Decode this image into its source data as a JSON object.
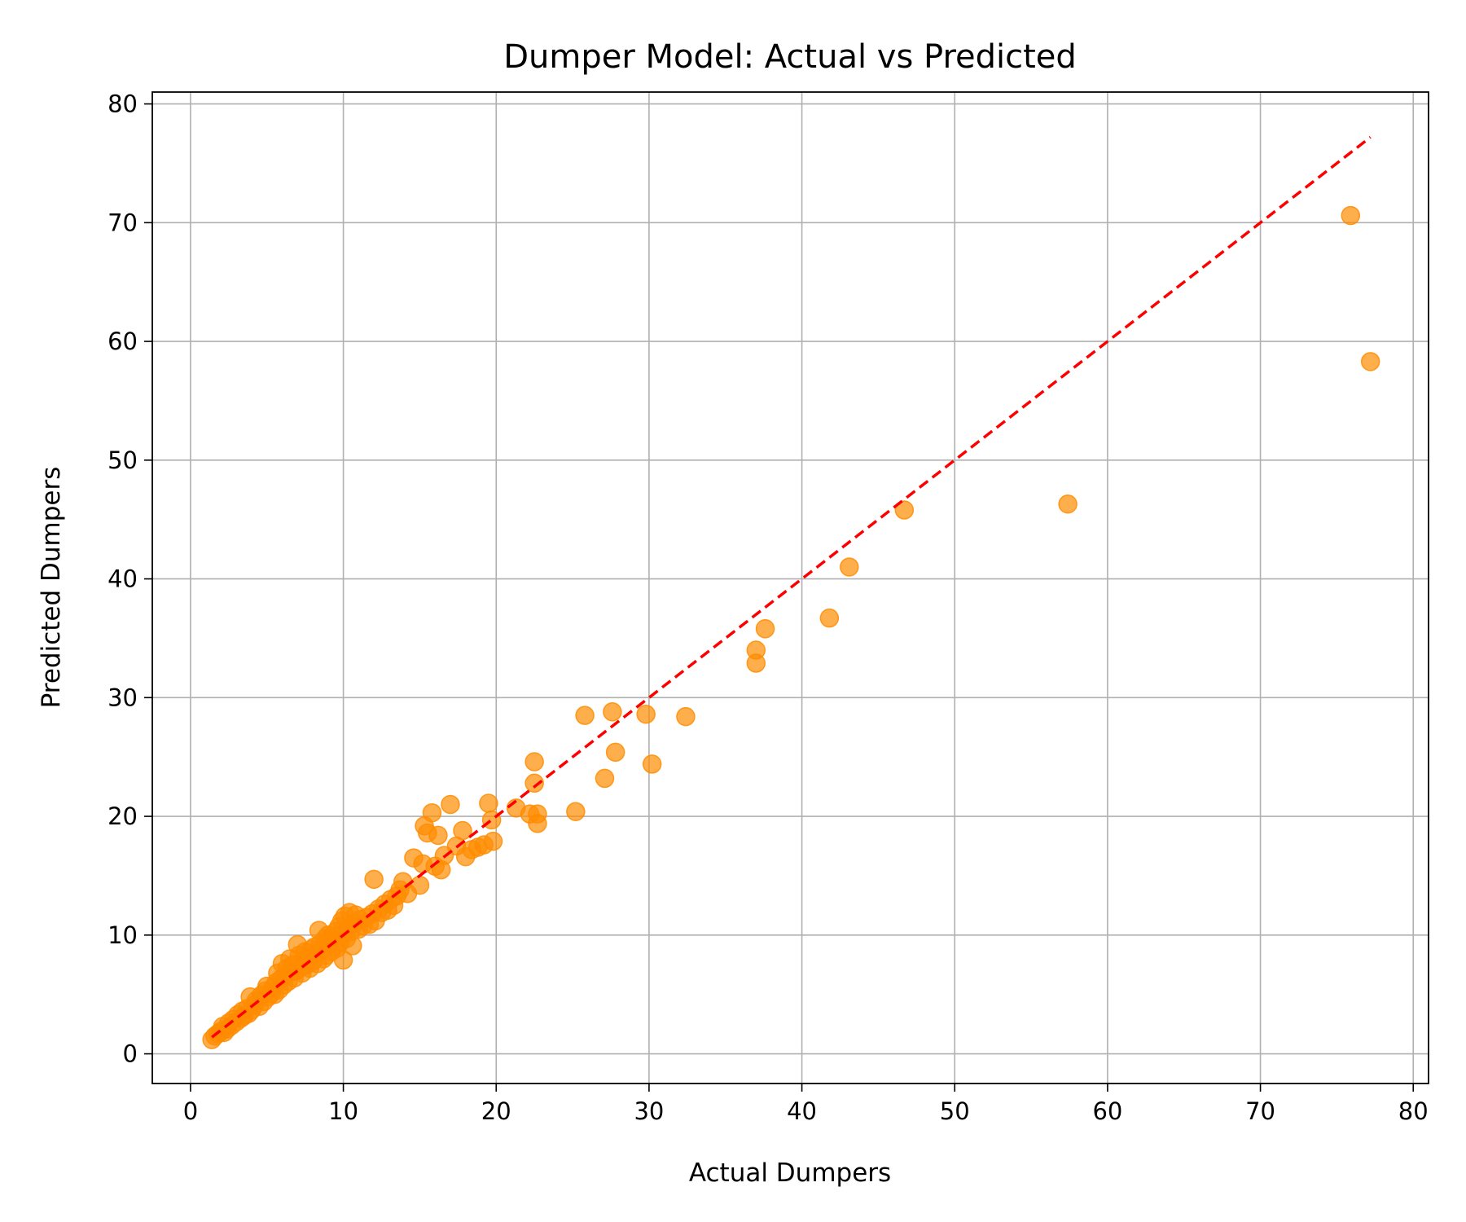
{
  "chart_data": {
    "type": "scatter",
    "title": "Dumper Model: Actual vs Predicted",
    "xlabel": "Actual Dumpers",
    "ylabel": "Predicted Dumpers",
    "xlim": [
      -2.5,
      81
    ],
    "ylim": [
      -2.5,
      81
    ],
    "xticks": [
      0,
      10,
      20,
      30,
      40,
      50,
      60,
      70,
      80
    ],
    "yticks": [
      0,
      10,
      20,
      30,
      40,
      50,
      60,
      70,
      80
    ],
    "grid": true,
    "legend": "none",
    "point_color": "#ff8c00",
    "point_opacity": 0.7,
    "reference_line": {
      "style": "dashed",
      "color": "#ff0000",
      "from": [
        1.4,
        1.4
      ],
      "to": [
        77.2,
        77.2
      ]
    },
    "points": [
      [
        1.4,
        1.2
      ],
      [
        1.6,
        1.5
      ],
      [
        1.8,
        1.7
      ],
      [
        2.0,
        1.9
      ],
      [
        2.1,
        2.3
      ],
      [
        2.2,
        1.8
      ],
      [
        2.4,
        2.1
      ],
      [
        2.5,
        2.6
      ],
      [
        2.7,
        2.4
      ],
      [
        2.8,
        2.9
      ],
      [
        3.0,
        2.7
      ],
      [
        3.1,
        3.3
      ],
      [
        3.3,
        3.0
      ],
      [
        3.4,
        3.6
      ],
      [
        3.5,
        3.2
      ],
      [
        3.7,
        3.8
      ],
      [
        3.8,
        3.4
      ],
      [
        3.9,
        4.8
      ],
      [
        4.0,
        3.7
      ],
      [
        4.2,
        4.1
      ],
      [
        4.3,
        4.5
      ],
      [
        4.5,
        4.0
      ],
      [
        4.6,
        4.9
      ],
      [
        4.8,
        4.4
      ],
      [
        4.9,
        5.3
      ],
      [
        5.0,
        5.7
      ],
      [
        5.1,
        4.8
      ],
      [
        5.3,
        5.1
      ],
      [
        5.4,
        5.6
      ],
      [
        5.5,
        5.0
      ],
      [
        5.6,
        6.0
      ],
      [
        5.7,
        6.8
      ],
      [
        5.8,
        5.4
      ],
      [
        5.9,
        6.3
      ],
      [
        6.0,
        7.6
      ],
      [
        6.1,
        5.8
      ],
      [
        6.2,
        6.6
      ],
      [
        6.3,
        7.2
      ],
      [
        6.4,
        6.1
      ],
      [
        6.5,
        8.0
      ],
      [
        6.6,
        6.9
      ],
      [
        6.7,
        7.5
      ],
      [
        6.8,
        6.4
      ],
      [
        6.9,
        7.0
      ],
      [
        7.0,
        9.2
      ],
      [
        7.1,
        8.3
      ],
      [
        7.2,
        7.3
      ],
      [
        7.3,
        6.8
      ],
      [
        7.4,
        7.9
      ],
      [
        7.5,
        8.6
      ],
      [
        7.6,
        7.5
      ],
      [
        7.7,
        8.1
      ],
      [
        7.8,
        7.2
      ],
      [
        7.9,
        8.8
      ],
      [
        8.0,
        7.8
      ],
      [
        8.1,
        9.0
      ],
      [
        8.2,
        8.4
      ],
      [
        8.3,
        7.6
      ],
      [
        8.4,
        10.4
      ],
      [
        8.5,
        9.3
      ],
      [
        8.6,
        8.7
      ],
      [
        8.7,
        8.0
      ],
      [
        8.8,
        9.7
      ],
      [
        8.9,
        8.3
      ],
      [
        9.0,
        10.0
      ],
      [
        9.1,
        9.5
      ],
      [
        9.2,
        8.6
      ],
      [
        9.3,
        9.9
      ],
      [
        9.4,
        9.1
      ],
      [
        9.5,
        10.3
      ],
      [
        9.6,
        8.9
      ],
      [
        9.7,
        10.7
      ],
      [
        9.8,
        9.4
      ],
      [
        9.9,
        11.2
      ],
      [
        10.0,
        7.9
      ],
      [
        10.0,
        10.1
      ],
      [
        10.1,
        11.6
      ],
      [
        10.2,
        9.7
      ],
      [
        10.3,
        10.6
      ],
      [
        10.4,
        11.9
      ],
      [
        10.5,
        10.3
      ],
      [
        10.6,
        9.1
      ],
      [
        10.7,
        11.0
      ],
      [
        10.8,
        11.7
      ],
      [
        11.0,
        10.5
      ],
      [
        11.1,
        11.3
      ],
      [
        11.3,
        10.8
      ],
      [
        11.5,
        11.5
      ],
      [
        11.7,
        10.9
      ],
      [
        11.9,
        11.8
      ],
      [
        12.0,
        14.7
      ],
      [
        12.1,
        11.2
      ],
      [
        12.3,
        12.2
      ],
      [
        12.5,
        11.9
      ],
      [
        12.7,
        12.6
      ],
      [
        12.9,
        12.1
      ],
      [
        13.1,
        13.0
      ],
      [
        13.3,
        12.5
      ],
      [
        13.5,
        13.3
      ],
      [
        13.7,
        13.8
      ],
      [
        13.9,
        14.5
      ],
      [
        14.2,
        13.5
      ],
      [
        14.6,
        16.5
      ],
      [
        15.0,
        14.2
      ],
      [
        15.2,
        16.0
      ],
      [
        15.3,
        19.2
      ],
      [
        15.5,
        18.6
      ],
      [
        15.8,
        20.3
      ],
      [
        16.0,
        15.8
      ],
      [
        16.2,
        18.4
      ],
      [
        16.4,
        15.5
      ],
      [
        16.6,
        16.7
      ],
      [
        17.0,
        21.0
      ],
      [
        17.4,
        17.5
      ],
      [
        17.8,
        18.8
      ],
      [
        18.0,
        16.6
      ],
      [
        18.4,
        17.2
      ],
      [
        18.8,
        17.4
      ],
      [
        19.2,
        17.6
      ],
      [
        19.5,
        21.1
      ],
      [
        19.7,
        19.7
      ],
      [
        19.8,
        17.9
      ],
      [
        21.3,
        20.7
      ],
      [
        22.2,
        20.2
      ],
      [
        22.5,
        24.6
      ],
      [
        22.5,
        22.8
      ],
      [
        22.7,
        20.2
      ],
      [
        22.7,
        19.4
      ],
      [
        25.2,
        20.4
      ],
      [
        25.8,
        28.5
      ],
      [
        27.1,
        23.2
      ],
      [
        27.6,
        28.8
      ],
      [
        27.8,
        25.4
      ],
      [
        29.8,
        28.6
      ],
      [
        30.2,
        24.4
      ],
      [
        32.4,
        28.4
      ],
      [
        37.0,
        34.0
      ],
      [
        37.0,
        32.9
      ],
      [
        37.6,
        35.8
      ],
      [
        41.8,
        36.7
      ],
      [
        43.1,
        41.0
      ],
      [
        46.7,
        45.8
      ],
      [
        57.4,
        46.3
      ],
      [
        75.9,
        70.6
      ],
      [
        77.2,
        58.3
      ]
    ]
  }
}
